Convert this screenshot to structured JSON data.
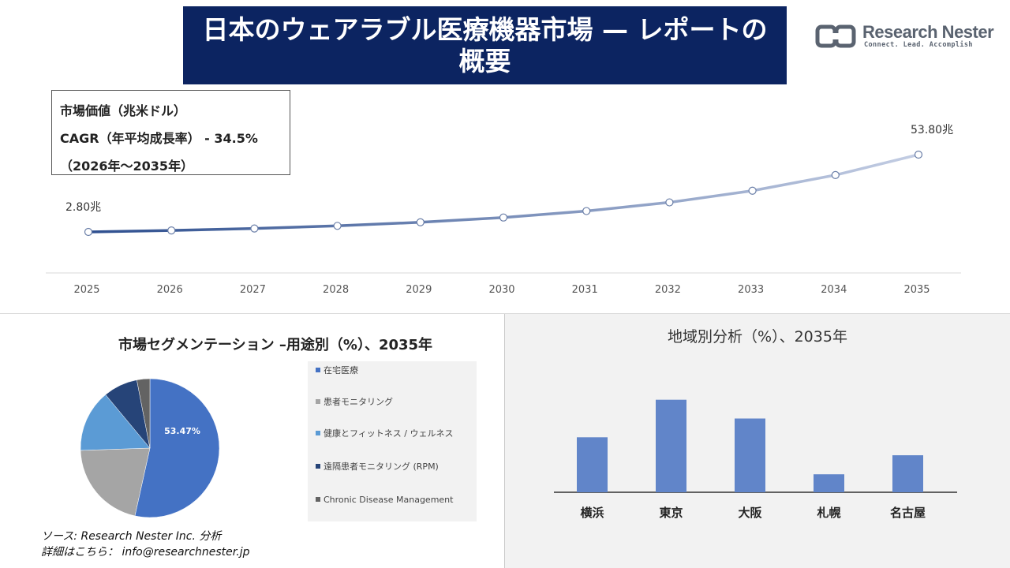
{
  "header": {
    "title": "日本のウェアラブル医療機器市場 — レポートの概要",
    "logo_name": "Research Nester",
    "logo_tagline": "Connect. Lead. Accomplish"
  },
  "info_box": {
    "line1": "市場価値（兆米ドル）",
    "line2": "CAGR（年平均成長率） - 34.5%",
    "line3": "（2026年～2035年）"
  },
  "pie_section": {
    "title": "市場セグメンテーション –用途別（%）、2035年"
  },
  "bar_section": {
    "title": "地域別分析（%）、2035年"
  },
  "footer": {
    "source": "ソース: Research Nester Inc. 分析",
    "contact": "詳細はこちら： info@researchnester.jp"
  },
  "colors": {
    "title_bg": "#0c2461",
    "line_start": "#2e4f8f",
    "line_end": "#c3cde3",
    "bar": "#6185c9",
    "pie": [
      "#4472c4",
      "#a5a5a5",
      "#5b9bd5",
      "#264478",
      "#636363"
    ]
  },
  "chart_data": [
    {
      "type": "line",
      "x": [
        "2025",
        "2026",
        "2027",
        "2028",
        "2029",
        "2030",
        "2031",
        "2032",
        "2033",
        "2034",
        "2035"
      ],
      "values": [
        2.8,
        3.77,
        5.07,
        6.81,
        9.16,
        12.32,
        16.57,
        22.29,
        29.98,
        40.32,
        53.8
      ],
      "data_labels": {
        "first": "2.80兆",
        "last": "53.80兆"
      },
      "grid": false
    },
    {
      "type": "pie",
      "labels": [
        "在宅医療",
        "患者モニタリング",
        "健康とフィットネス / ウェルネス",
        "遠隔患者モニタリング (RPM)",
        "Chronic Disease Management"
      ],
      "values": [
        53.47,
        21.0,
        14.5,
        8.0,
        3.03
      ],
      "data_labels": [
        "53.47%"
      ],
      "legend": "right"
    },
    {
      "type": "bar",
      "categories": [
        "横浜",
        "東京",
        "大阪",
        "札幌",
        "名古屋"
      ],
      "values": [
        20.5,
        34.5,
        27.5,
        6.7,
        13.8
      ]
    }
  ]
}
